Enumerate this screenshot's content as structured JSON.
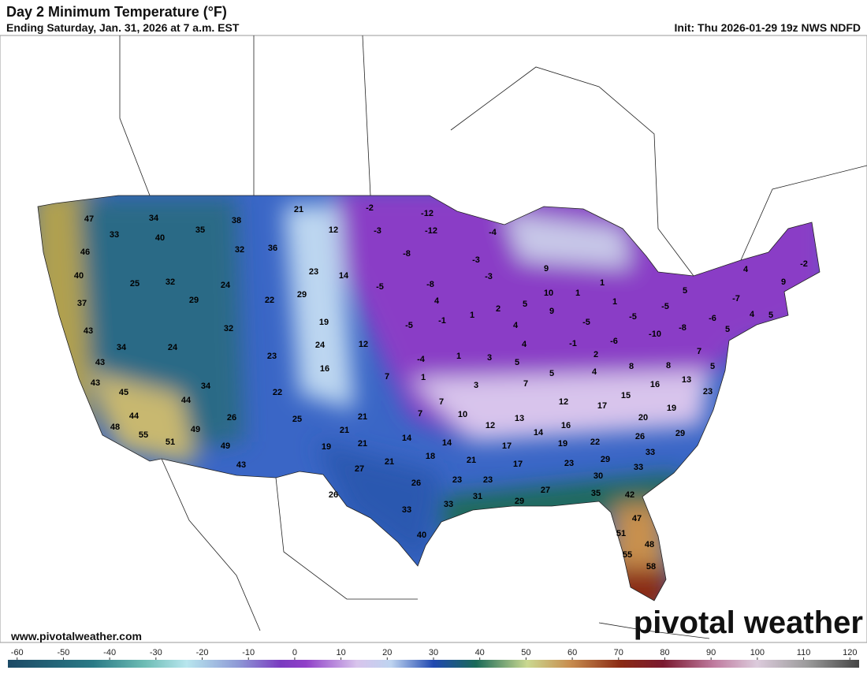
{
  "header": {
    "title": "Day 2 Minimum Temperature (°F)",
    "subtitle": "Ending Saturday, Jan. 31, 2026 at 7 a.m. EST",
    "init": "Init: Thu 2026-01-29 19z NWS NDFD"
  },
  "map": {
    "temperatures": [
      47,
      34,
      38,
      21,
      -2,
      -12,
      33,
      40,
      35,
      12,
      -3,
      -12,
      -4,
      46,
      32,
      36,
      -8,
      -3,
      40,
      25,
      32,
      24,
      23,
      14,
      -8,
      -3,
      9,
      1,
      5,
      4,
      -2,
      9,
      37,
      29,
      22,
      29,
      -5,
      4,
      2,
      5,
      10,
      1,
      1,
      -5,
      -7,
      19,
      -5,
      1,
      4,
      9,
      -5,
      -5,
      -8,
      -6,
      4,
      5,
      43,
      32,
      -1,
      -10,
      5,
      34,
      24,
      24,
      12,
      4,
      -1,
      -6,
      7,
      23,
      1,
      3,
      2,
      43,
      16,
      -4,
      5,
      5,
      4,
      8,
      8,
      5,
      43,
      34,
      7,
      1,
      3,
      7,
      16,
      13,
      45,
      44,
      22,
      7,
      12,
      17,
      15,
      23,
      26,
      25,
      21,
      7,
      10,
      13,
      16,
      44,
      20,
      19,
      21,
      12,
      48,
      49,
      14,
      14,
      14,
      22,
      26,
      29,
      55,
      51,
      21,
      19,
      49,
      19,
      17,
      33,
      21,
      18,
      21,
      17,
      23,
      29,
      33,
      43,
      27,
      30,
      23,
      23,
      26,
      26,
      27,
      35,
      42,
      31,
      33,
      29,
      33,
      47,
      40,
      51,
      48,
      55,
      58
    ]
  },
  "colorbar": {
    "lim": [
      -62,
      122
    ],
    "ticks": [
      -60,
      -50,
      -40,
      -30,
      -20,
      -10,
      0,
      10,
      20,
      30,
      40,
      50,
      60,
      70,
      80,
      90,
      100,
      110,
      120
    ]
  },
  "footer": {
    "website": "www.pivotalweather.com",
    "logo": "pivotal weather"
  }
}
